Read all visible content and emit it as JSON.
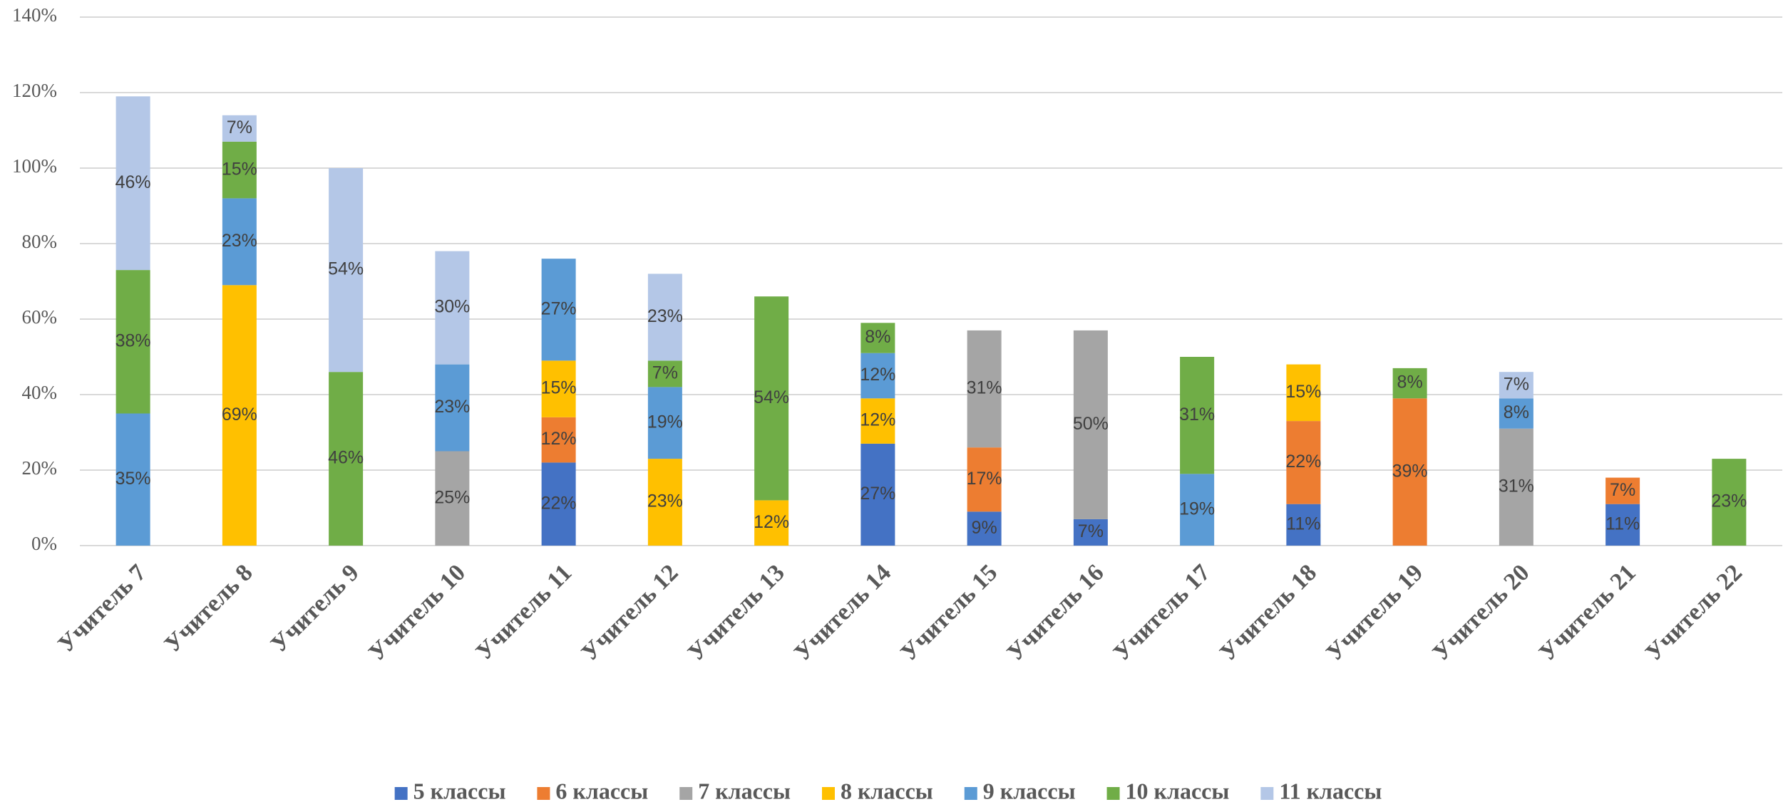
{
  "chart_data": {
    "type": "stacked_bar",
    "categories": [
      "Учитель 7",
      "Учитель 8",
      "Учитель 9",
      "Учитель 10",
      "Учитель 11",
      "Учитель 12",
      "Учитель 13",
      "Учитель 14",
      "Учитель 15",
      "Учитель 16",
      "Учитель 17",
      "Учитель 18",
      "Учитель 19",
      "Учитель 20",
      "Учитель 21",
      "Учитель 22"
    ],
    "ylim": [
      0,
      140
    ],
    "yticks": [
      {
        "value": 0,
        "label": "0%"
      },
      {
        "value": 20,
        "label": "20%"
      },
      {
        "value": 40,
        "label": "40%"
      },
      {
        "value": 60,
        "label": "60%"
      },
      {
        "value": 80,
        "label": "80%"
      },
      {
        "value": 100,
        "label": "100%"
      },
      {
        "value": 120,
        "label": "120%"
      },
      {
        "value": 140,
        "label": "140%"
      }
    ],
    "grid": true,
    "legend": "bottom",
    "series": [
      {
        "name": "5 классы",
        "color": "#4472c4",
        "values": [
          null,
          null,
          null,
          null,
          22,
          null,
          null,
          27,
          9,
          7,
          null,
          11,
          null,
          null,
          11,
          null
        ],
        "value_labels": [
          null,
          null,
          null,
          null,
          "22%",
          null,
          null,
          "27%",
          "9%",
          "7%",
          null,
          "11%",
          null,
          null,
          "11%",
          null
        ]
      },
      {
        "name": "6 классы",
        "color": "#ed7d31",
        "values": [
          null,
          null,
          null,
          null,
          12,
          null,
          null,
          null,
          17,
          null,
          null,
          22,
          39,
          null,
          7,
          null
        ],
        "value_labels": [
          null,
          null,
          null,
          null,
          "12%",
          null,
          null,
          null,
          "17%",
          null,
          null,
          "22%",
          "39%",
          null,
          "7%",
          null
        ]
      },
      {
        "name": "7 классы",
        "color": "#a5a5a5",
        "values": [
          null,
          null,
          null,
          25,
          null,
          null,
          null,
          null,
          31,
          50,
          null,
          null,
          null,
          31,
          null,
          null
        ],
        "value_labels": [
          null,
          null,
          null,
          "25%",
          null,
          null,
          null,
          null,
          "31%",
          "50%",
          null,
          null,
          null,
          "31%",
          null,
          null
        ]
      },
      {
        "name": "8 классы",
        "color": "#ffc000",
        "values": [
          null,
          69,
          null,
          null,
          15,
          23,
          12,
          12,
          null,
          null,
          null,
          15,
          null,
          null,
          null,
          null
        ],
        "value_labels": [
          null,
          "69%",
          null,
          null,
          "15%",
          "23%",
          "12%",
          "12%",
          null,
          null,
          null,
          "15%",
          null,
          null,
          null,
          null
        ]
      },
      {
        "name": "9 классы",
        "color": "#5b9bd5",
        "values": [
          35,
          23,
          null,
          23,
          27,
          19,
          null,
          12,
          null,
          null,
          19,
          null,
          null,
          8,
          null,
          null
        ],
        "value_labels": [
          "35%",
          "23%",
          null,
          "23%",
          "27%",
          "19%",
          null,
          "12%",
          null,
          null,
          "19%",
          null,
          null,
          "8%",
          null,
          null
        ]
      },
      {
        "name": "10 классы",
        "color": "#70ad47",
        "values": [
          38,
          15,
          46,
          null,
          null,
          7,
          54,
          8,
          null,
          null,
          31,
          null,
          8,
          null,
          null,
          23
        ],
        "value_labels": [
          "38%",
          "15%",
          "46%",
          null,
          null,
          "7%",
          "54%",
          "8%",
          null,
          null,
          "31%",
          null,
          "8%",
          null,
          null,
          "23%"
        ]
      },
      {
        "name": "11 классы",
        "color": "#b4c7e7",
        "values": [
          46,
          7,
          54,
          30,
          null,
          23,
          null,
          null,
          null,
          null,
          null,
          null,
          null,
          7,
          null,
          null
        ],
        "value_labels": [
          "46%",
          "7%",
          "54%",
          "30%",
          null,
          "23%",
          null,
          null,
          null,
          null,
          null,
          null,
          null,
          "7%",
          null,
          null
        ]
      }
    ]
  }
}
